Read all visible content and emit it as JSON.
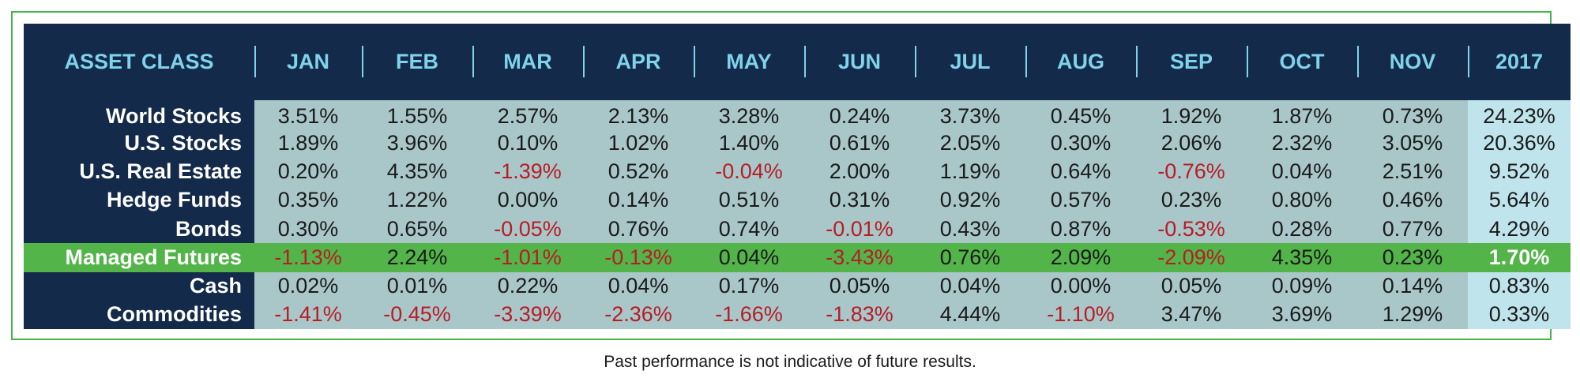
{
  "chart_data": {
    "type": "table",
    "colors": {
      "header_bg": "#132a4a",
      "header_text": "#7fd3ea",
      "label_bg": "#132a4a",
      "cell_bg": "#a9c7c9",
      "total_bg": "#bfe4ec",
      "highlight_bg": "#52b449",
      "border": "#43b649",
      "negative_text": "#b81c25"
    },
    "columns": [
      "ASSET CLASS",
      "JAN",
      "FEB",
      "MAR",
      "APR",
      "MAY",
      "JUN",
      "JUL",
      "AUG",
      "SEP",
      "OCT",
      "NOV",
      "2017"
    ],
    "rows": [
      {
        "label": "World Stocks",
        "values": [
          "3.51%",
          "1.55%",
          "2.57%",
          "2.13%",
          "3.28%",
          "0.24%",
          "3.73%",
          "0.45%",
          "1.92%",
          "1.87%",
          "0.73%",
          "24.23%"
        ]
      },
      {
        "label": "U.S. Stocks",
        "values": [
          "1.89%",
          "3.96%",
          "0.10%",
          "1.02%",
          "1.40%",
          "0.61%",
          "2.05%",
          "0.30%",
          "2.06%",
          "2.32%",
          "3.05%",
          "20.36%"
        ]
      },
      {
        "label": "U.S. Real Estate",
        "values": [
          "0.20%",
          "4.35%",
          "-1.39%",
          "0.52%",
          "-0.04%",
          "2.00%",
          "1.19%",
          "0.64%",
          "-0.76%",
          "0.04%",
          "2.51%",
          "9.52%"
        ]
      },
      {
        "label": "Hedge Funds",
        "values": [
          "0.35%",
          "1.22%",
          "0.00%",
          "0.14%",
          "0.51%",
          "0.31%",
          "0.92%",
          "0.57%",
          "0.23%",
          "0.80%",
          "0.46%",
          "5.64%"
        ]
      },
      {
        "label": "Bonds",
        "values": [
          "0.30%",
          "0.65%",
          "-0.05%",
          "0.76%",
          "0.74%",
          "-0.01%",
          "0.43%",
          "0.87%",
          "-0.53%",
          "0.28%",
          "0.77%",
          "4.29%"
        ]
      },
      {
        "label": "Managed Futures",
        "highlight": true,
        "values": [
          "-1.13%",
          "2.24%",
          "-1.01%",
          "-0.13%",
          "0.04%",
          "-3.43%",
          "0.76%",
          "2.09%",
          "-2.09%",
          "4.35%",
          "0.23%",
          "1.70%"
        ]
      },
      {
        "label": "Cash",
        "values": [
          "0.02%",
          "0.01%",
          "0.22%",
          "0.04%",
          "0.17%",
          "0.05%",
          "0.04%",
          "0.00%",
          "0.05%",
          "0.09%",
          "0.14%",
          "0.83%"
        ]
      },
      {
        "label": "Commodities",
        "values": [
          "-1.41%",
          "-0.45%",
          "-3.39%",
          "-2.36%",
          "-1.66%",
          "-1.83%",
          "4.44%",
          "-1.10%",
          "3.47%",
          "3.69%",
          "1.29%",
          "0.33%"
        ]
      }
    ]
  },
  "footnote": "Past performance is not indicative of future results."
}
